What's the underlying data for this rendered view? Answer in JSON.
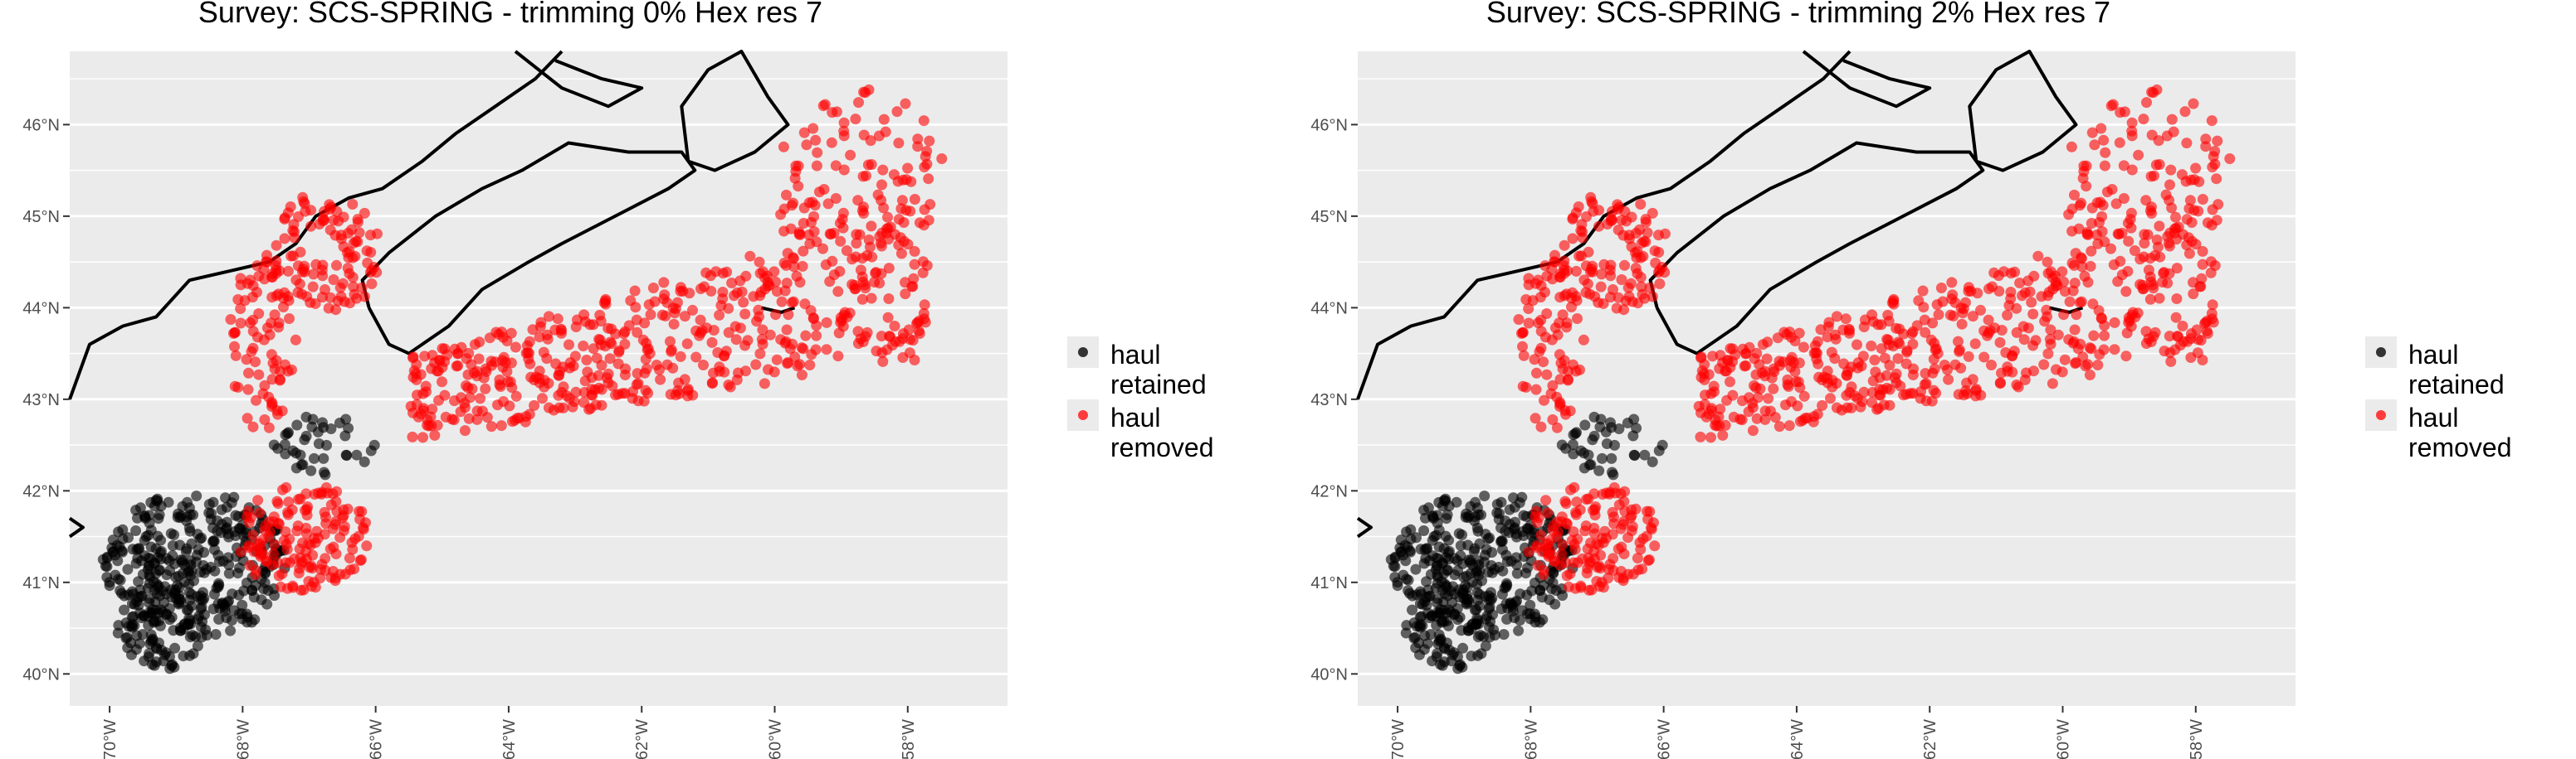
{
  "panels": [
    {
      "title": "Survey: SCS-SPRING - trimming 0% Hex res 7",
      "chart_data": {
        "type": "scatter",
        "title": "Survey: SCS-SPRING - trimming 0% Hex res 7",
        "xlabel": "",
        "ylabel": "",
        "xlim": [
          -70.6,
          -56.5
        ],
        "ylim": [
          39.65,
          46.8
        ],
        "x_ticks": [
          -70,
          -68,
          -66,
          -64,
          -62,
          -60,
          -58
        ],
        "y_ticks": [
          40,
          41,
          42,
          43,
          44,
          45,
          46
        ],
        "x_tick_labels": [
          "70°W",
          "68°W",
          "66°W",
          "64°W",
          "62°W",
          "60°W",
          "58°W"
        ],
        "y_tick_labels": [
          "40°N",
          "41°N",
          "42°N",
          "43°N",
          "44°N",
          "45°N",
          "46°N"
        ],
        "grid": true,
        "legend_position": "right",
        "series": [
          {
            "name": "haul retained",
            "color": "#000000"
          },
          {
            "name": "haul removed",
            "color": "#ff0000"
          }
        ]
      }
    },
    {
      "title": "Survey: SCS-SPRING - trimming 2% Hex res 7",
      "chart_data": {
        "type": "scatter",
        "title": "Survey: SCS-SPRING - trimming 2% Hex res 7",
        "xlabel": "",
        "ylabel": "",
        "xlim": [
          -70.6,
          -56.5
        ],
        "ylim": [
          39.65,
          46.8
        ],
        "x_ticks": [
          -70,
          -68,
          -66,
          -64,
          -62,
          -60,
          -58
        ],
        "y_ticks": [
          40,
          41,
          42,
          43,
          44,
          45,
          46
        ],
        "x_tick_labels": [
          "70°W",
          "68°W",
          "66°W",
          "64°W",
          "62°W",
          "60°W",
          "58°W"
        ],
        "y_tick_labels": [
          "40°N",
          "41°N",
          "42°N",
          "43°N",
          "44°N",
          "45°N",
          "46°N"
        ],
        "grid": true,
        "legend_position": "right",
        "series": [
          {
            "name": "haul retained",
            "color": "#000000"
          },
          {
            "name": "haul removed",
            "color": "#ff0000"
          }
        ]
      }
    }
  ],
  "legend": {
    "items": [
      {
        "line1": "haul",
        "line2": "retained",
        "color": "#000000"
      },
      {
        "line1": "haul",
        "line2": "removed",
        "color": "#ff0000"
      }
    ]
  }
}
